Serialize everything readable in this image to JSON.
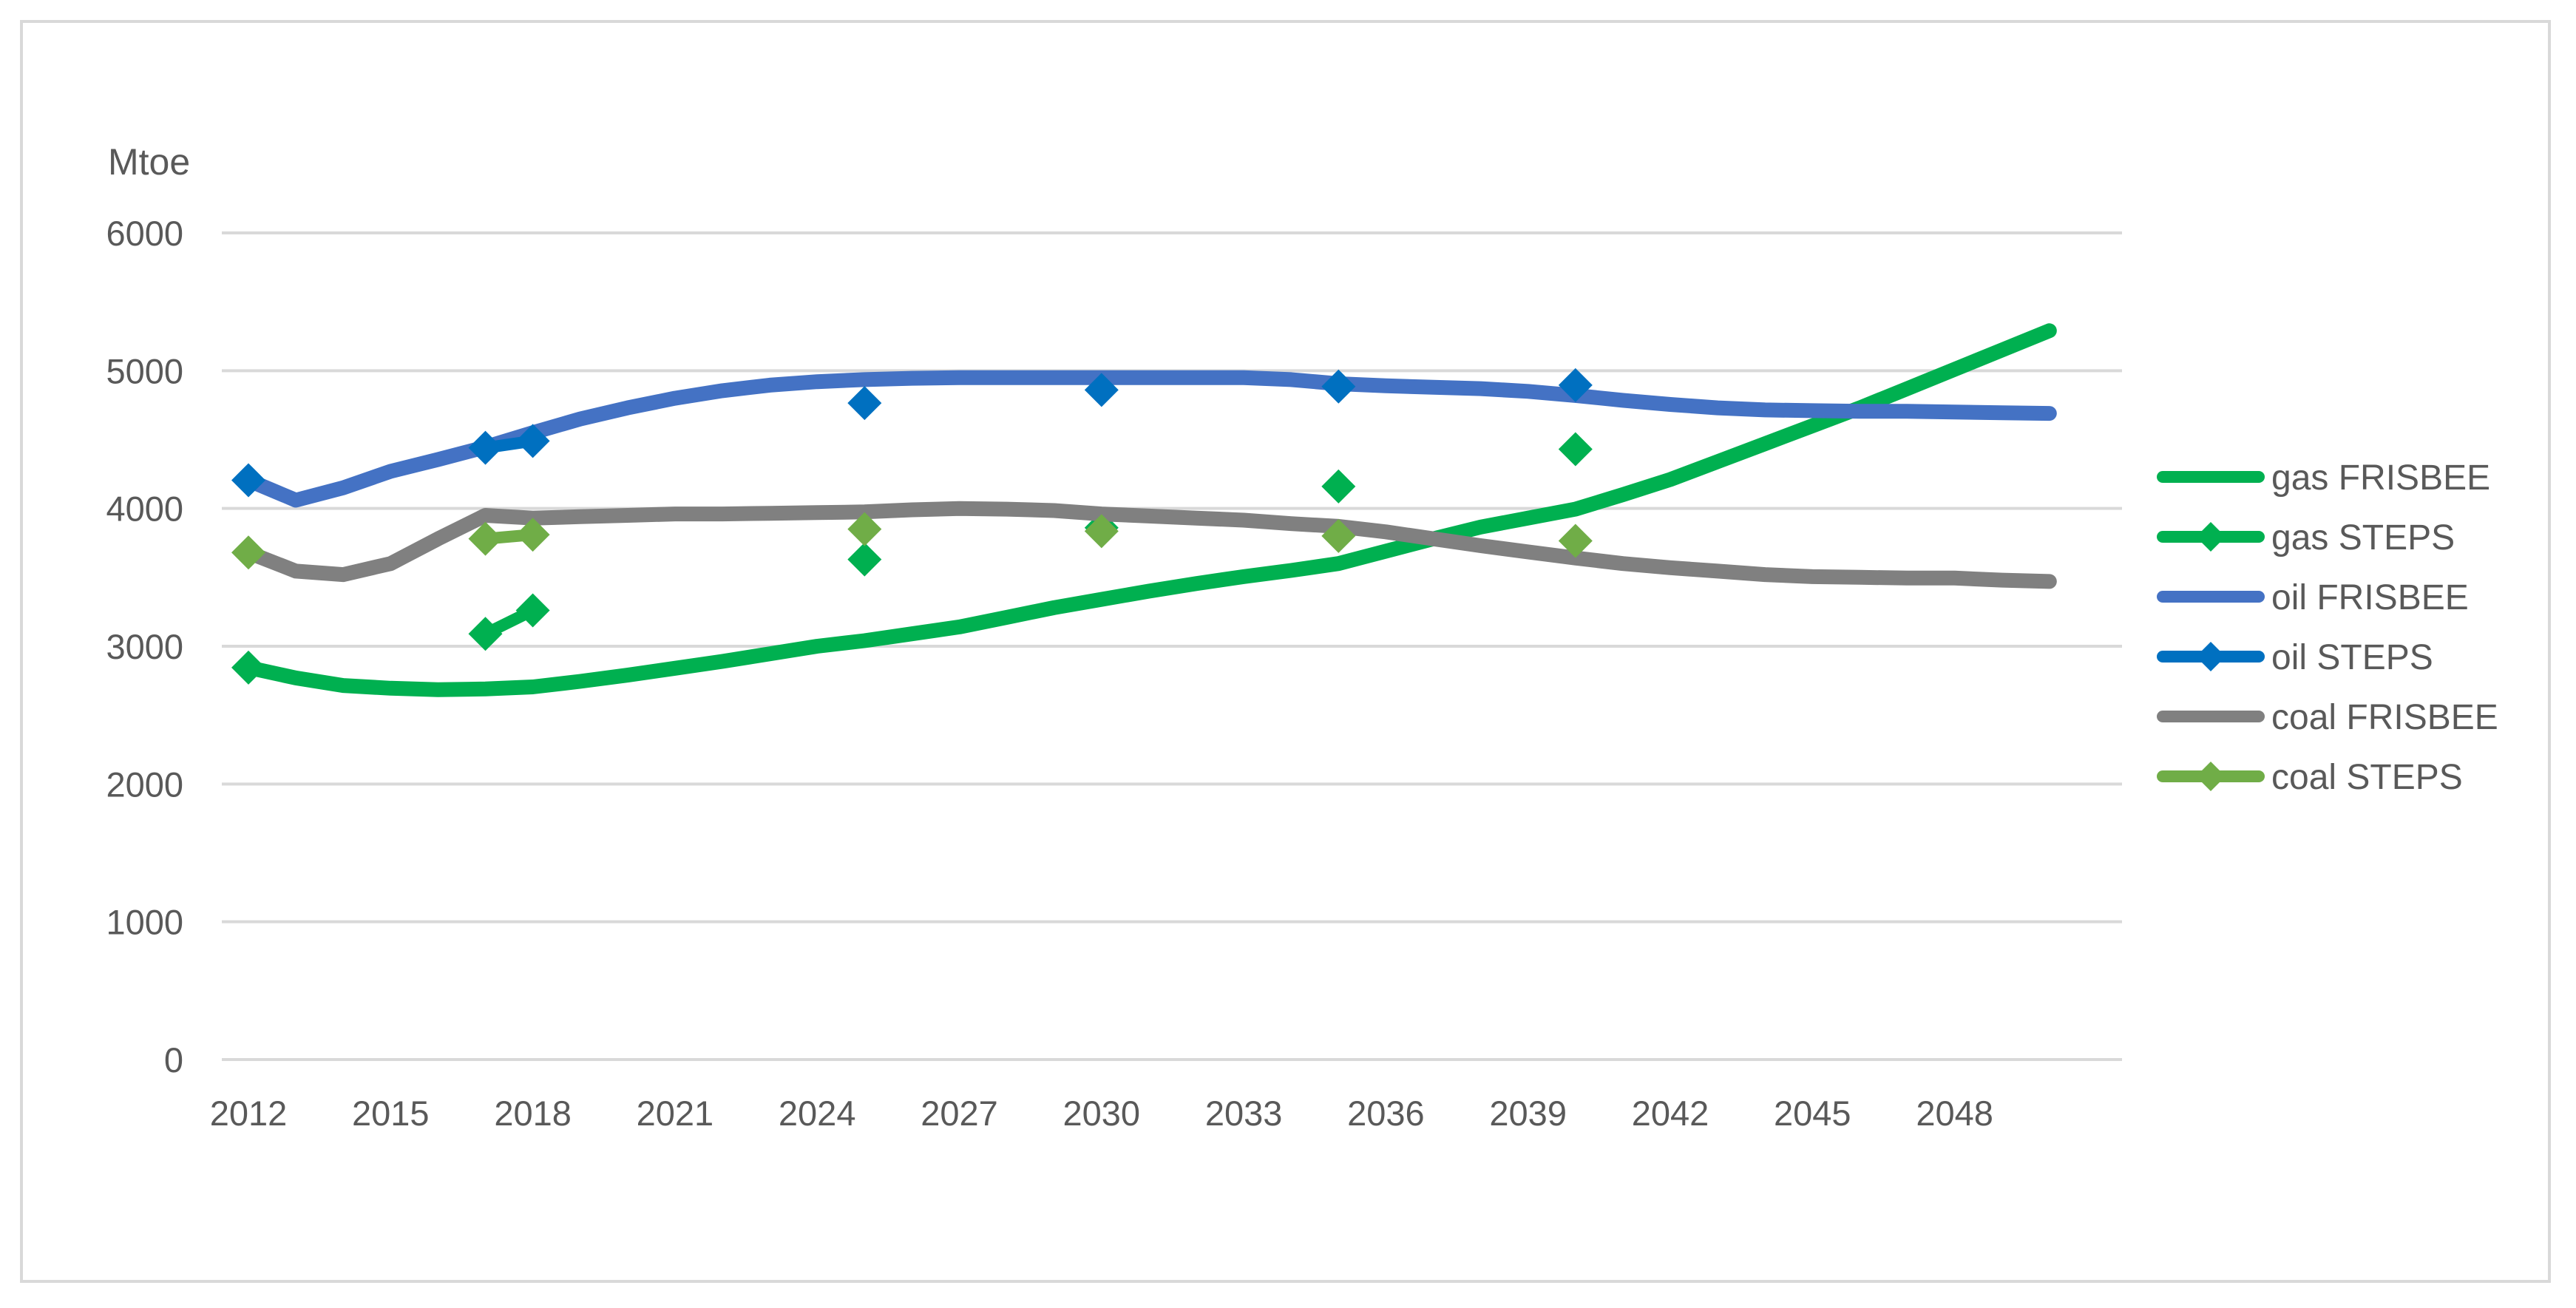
{
  "page": {
    "background_color": "#FFFFFF",
    "frame_border_color": "#D9D9D9"
  },
  "chart_data": {
    "type": "line",
    "title": "",
    "ylabel": "Mtoe",
    "xlabel": "",
    "grid": true,
    "legend_position": "right",
    "axis_text_color": "#595959",
    "gridline_color": "#D9D9D9",
    "y_axis": {
      "min": 0,
      "max": 6000,
      "tick_step": 1000,
      "tick_labels": [
        "0",
        "1000",
        "2000",
        "3000",
        "4000",
        "5000",
        "6000"
      ]
    },
    "x_axis": {
      "min": 2012,
      "max": 2051.5,
      "tick_labels": [
        "2012",
        "2015",
        "2018",
        "2021",
        "2024",
        "2027",
        "2030",
        "2033",
        "2036",
        "2039",
        "2042",
        "2045",
        "2048"
      ]
    },
    "series": [
      {
        "name": "gas FRISBEE",
        "fuel": "gas",
        "scenario": "FRISBEE",
        "color": "#00B050",
        "style": "line",
        "marker": "none",
        "points": [
          [
            2012,
            2845
          ],
          [
            2013,
            2770
          ],
          [
            2014,
            2715
          ],
          [
            2015,
            2695
          ],
          [
            2016,
            2685
          ],
          [
            2017,
            2690
          ],
          [
            2018,
            2705
          ],
          [
            2019,
            2745
          ],
          [
            2020,
            2790
          ],
          [
            2021,
            2840
          ],
          [
            2022,
            2890
          ],
          [
            2023,
            2945
          ],
          [
            2024,
            3000
          ],
          [
            2025,
            3040
          ],
          [
            2026,
            3090
          ],
          [
            2027,
            3140
          ],
          [
            2028,
            3210
          ],
          [
            2029,
            3280
          ],
          [
            2030,
            3340
          ],
          [
            2031,
            3400
          ],
          [
            2032,
            3455
          ],
          [
            2033,
            3505
          ],
          [
            2034,
            3550
          ],
          [
            2035,
            3600
          ],
          [
            2036,
            3690
          ],
          [
            2037,
            3780
          ],
          [
            2038,
            3865
          ],
          [
            2039,
            3930
          ],
          [
            2040,
            3995
          ],
          [
            2041,
            4100
          ],
          [
            2042,
            4210
          ],
          [
            2043,
            4340
          ],
          [
            2044,
            4470
          ],
          [
            2045,
            4600
          ],
          [
            2046,
            4730
          ],
          [
            2047,
            4870
          ],
          [
            2048,
            5010
          ],
          [
            2049,
            5150
          ],
          [
            2050,
            5290
          ]
        ]
      },
      {
        "name": "gas STEPS",
        "fuel": "gas",
        "scenario": "STEPS",
        "color": "#00B050",
        "style": "line-with-gaps",
        "marker": "diamond",
        "points": [
          [
            2012,
            2845
          ],
          [
            2017,
            3090
          ],
          [
            2018,
            3260
          ],
          [
            2025,
            3630
          ],
          [
            2030,
            3860
          ],
          [
            2035,
            4160
          ],
          [
            2040,
            4430
          ]
        ]
      },
      {
        "name": "oil FRISBEE",
        "fuel": "oil",
        "scenario": "FRISBEE",
        "color": "#4472C4",
        "style": "line",
        "marker": "none",
        "points": [
          [
            2012,
            4205
          ],
          [
            2013,
            4060
          ],
          [
            2014,
            4150
          ],
          [
            2015,
            4270
          ],
          [
            2016,
            4355
          ],
          [
            2017,
            4445
          ],
          [
            2018,
            4550
          ],
          [
            2019,
            4650
          ],
          [
            2020,
            4730
          ],
          [
            2021,
            4800
          ],
          [
            2022,
            4855
          ],
          [
            2023,
            4895
          ],
          [
            2024,
            4920
          ],
          [
            2025,
            4935
          ],
          [
            2026,
            4945
          ],
          [
            2027,
            4950
          ],
          [
            2028,
            4950
          ],
          [
            2029,
            4950
          ],
          [
            2030,
            4950
          ],
          [
            2031,
            4950
          ],
          [
            2032,
            4950
          ],
          [
            2033,
            4950
          ],
          [
            2034,
            4935
          ],
          [
            2035,
            4905
          ],
          [
            2036,
            4890
          ],
          [
            2037,
            4880
          ],
          [
            2038,
            4870
          ],
          [
            2039,
            4850
          ],
          [
            2040,
            4820
          ],
          [
            2041,
            4785
          ],
          [
            2042,
            4755
          ],
          [
            2043,
            4730
          ],
          [
            2044,
            4715
          ],
          [
            2045,
            4710
          ],
          [
            2046,
            4705
          ],
          [
            2047,
            4705
          ],
          [
            2048,
            4700
          ],
          [
            2049,
            4695
          ],
          [
            2050,
            4690
          ]
        ]
      },
      {
        "name": "oil STEPS",
        "fuel": "oil",
        "scenario": "STEPS",
        "color": "#0070C0",
        "style": "line-with-gaps",
        "marker": "diamond",
        "points": [
          [
            2012,
            4205
          ],
          [
            2017,
            4440
          ],
          [
            2018,
            4490
          ],
          [
            2025,
            4765
          ],
          [
            2030,
            4860
          ],
          [
            2035,
            4885
          ],
          [
            2040,
            4895
          ]
        ]
      },
      {
        "name": "coal FRISBEE",
        "fuel": "coal",
        "scenario": "FRISBEE",
        "color": "#808080",
        "style": "line",
        "marker": "none",
        "points": [
          [
            2012,
            3680
          ],
          [
            2013,
            3545
          ],
          [
            2014,
            3520
          ],
          [
            2015,
            3600
          ],
          [
            2016,
            3780
          ],
          [
            2017,
            3950
          ],
          [
            2018,
            3930
          ],
          [
            2019,
            3940
          ],
          [
            2020,
            3950
          ],
          [
            2021,
            3960
          ],
          [
            2022,
            3960
          ],
          [
            2023,
            3965
          ],
          [
            2024,
            3970
          ],
          [
            2025,
            3975
          ],
          [
            2026,
            3990
          ],
          [
            2027,
            4000
          ],
          [
            2028,
            3995
          ],
          [
            2029,
            3985
          ],
          [
            2030,
            3960
          ],
          [
            2031,
            3945
          ],
          [
            2032,
            3930
          ],
          [
            2033,
            3915
          ],
          [
            2034,
            3890
          ],
          [
            2035,
            3870
          ],
          [
            2036,
            3830
          ],
          [
            2037,
            3780
          ],
          [
            2038,
            3730
          ],
          [
            2039,
            3685
          ],
          [
            2040,
            3640
          ],
          [
            2041,
            3600
          ],
          [
            2042,
            3570
          ],
          [
            2043,
            3545
          ],
          [
            2044,
            3520
          ],
          [
            2045,
            3505
          ],
          [
            2046,
            3500
          ],
          [
            2047,
            3495
          ],
          [
            2048,
            3495
          ],
          [
            2049,
            3480
          ],
          [
            2050,
            3470
          ]
        ]
      },
      {
        "name": "coal STEPS",
        "fuel": "coal",
        "scenario": "STEPS",
        "color": "#70AD47",
        "style": "line-with-gaps",
        "marker": "diamond",
        "points": [
          [
            2012,
            3680
          ],
          [
            2017,
            3780
          ],
          [
            2018,
            3810
          ],
          [
            2025,
            3850
          ],
          [
            2030,
            3835
          ],
          [
            2035,
            3800
          ],
          [
            2040,
            3765
          ]
        ]
      }
    ],
    "legend_entries": [
      "gas FRISBEE",
      "gas STEPS",
      "oil FRISBEE",
      "oil STEPS",
      "coal FRISBEE",
      "coal STEPS"
    ]
  }
}
